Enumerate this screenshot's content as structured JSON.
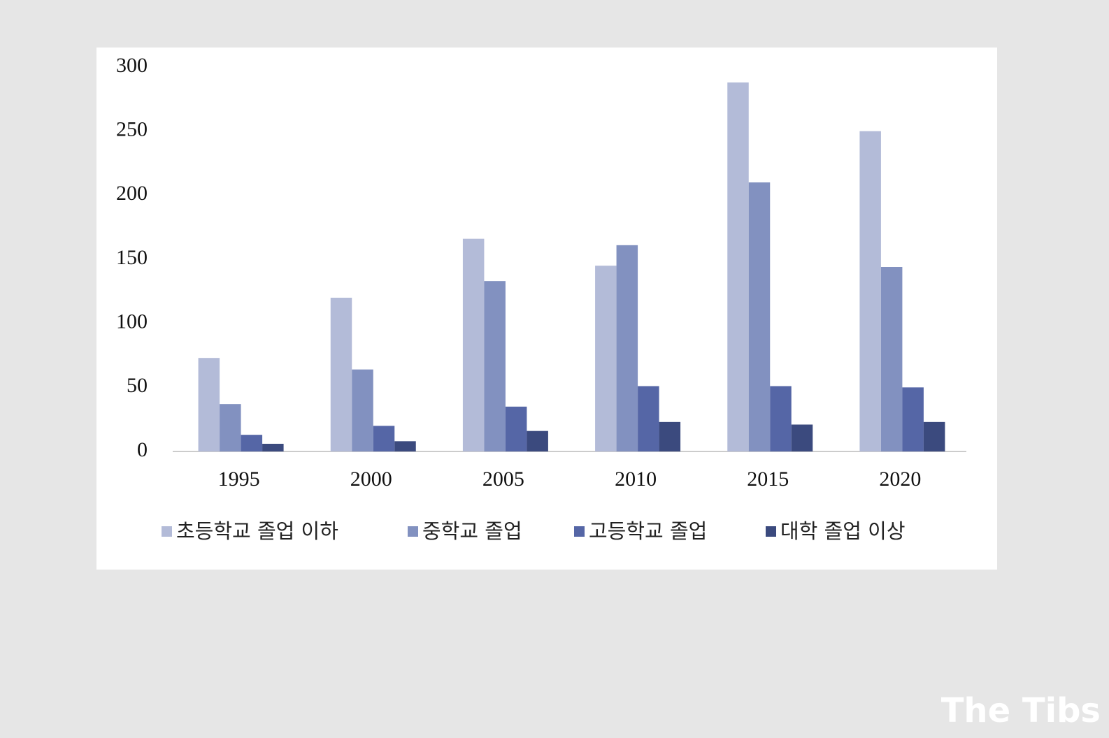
{
  "chart_data": {
    "type": "bar",
    "categories": [
      "1995",
      "2000",
      "2005",
      "2010",
      "2015",
      "2020"
    ],
    "series": [
      {
        "name": "초등학교 졸업 이하",
        "color": "#b3bbd8",
        "values": [
          73,
          120,
          166,
          145,
          288,
          250
        ]
      },
      {
        "name": "중학교 졸업",
        "color": "#8291c0",
        "values": [
          37,
          64,
          133,
          161,
          210,
          144
        ]
      },
      {
        "name": "고등학교 졸업",
        "color": "#5566a6",
        "values": [
          13,
          20,
          35,
          51,
          51,
          50
        ]
      },
      {
        "name": "대학 졸업 이상",
        "color": "#3b4a7e",
        "values": [
          6,
          8,
          16,
          23,
          21,
          23
        ]
      }
    ],
    "ylim": [
      0,
      300
    ],
    "yticks": [
      0,
      50,
      100,
      150,
      200,
      250,
      300
    ],
    "grid": false,
    "legend": "bottom"
  },
  "watermark": "The Tibs"
}
